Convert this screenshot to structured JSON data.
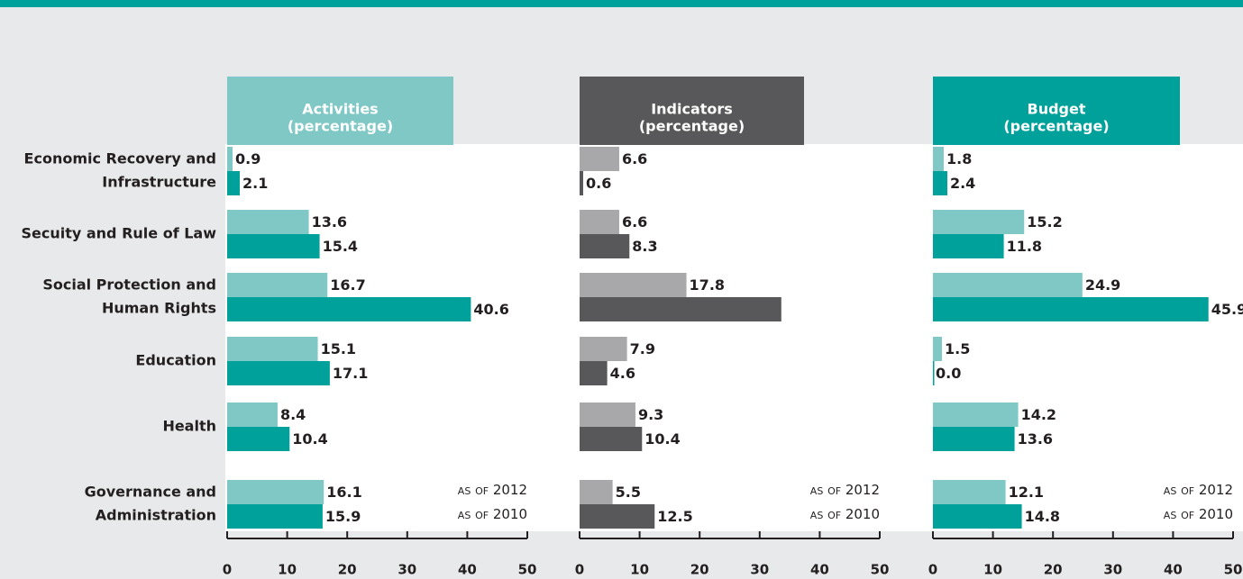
{
  "chart_data": [
    {
      "type": "bar",
      "orientation": "horizontal",
      "title": [
        "Activities",
        "(percentage)"
      ],
      "header_color": "#80c8c5",
      "categories": [
        [
          "Economic Recovery and",
          "Infrastructure"
        ],
        [
          "Secuity and Rule of Law"
        ],
        [
          "Social Protection and",
          "Human Rights"
        ],
        [
          "Education"
        ],
        [
          "Health"
        ],
        [
          "Governance and",
          "Administration"
        ]
      ],
      "series": [
        {
          "name": "as of 2012",
          "color": "#80c8c5",
          "values": [
            0.9,
            13.6,
            16.7,
            15.1,
            8.4,
            16.1
          ],
          "value_labels": [
            "0.9",
            "13.6",
            "16.7",
            "15.1",
            "8.4",
            "16.1"
          ]
        },
        {
          "name": "as of 2010",
          "color": "#00a19a",
          "values": [
            2.1,
            15.4,
            40.6,
            17.1,
            10.4,
            15.9
          ],
          "value_labels": [
            "2.1",
            "15.4",
            "40.6",
            "17.1",
            "10.4",
            "15.9"
          ]
        }
      ],
      "xlim": [
        0,
        50
      ],
      "xticks": [
        0,
        10,
        20,
        30,
        40,
        50
      ]
    },
    {
      "type": "bar",
      "orientation": "horizontal",
      "title": [
        "Indicators",
        "(percentage)"
      ],
      "header_color": "#58585a",
      "series": [
        {
          "name": "as of 2012",
          "color": "#a8a8aa",
          "values": [
            6.6,
            6.6,
            17.8,
            7.9,
            9.3,
            5.5
          ],
          "value_labels": [
            "6.6",
            "6.6",
            "17.8",
            "7.9",
            "9.3",
            "5.5"
          ]
        },
        {
          "name": "as of 2010",
          "color": "#58585a",
          "values": [
            0.6,
            8.3,
            33.6,
            4.6,
            10.4,
            12.5
          ],
          "value_labels": [
            "0.6",
            "8.3",
            null,
            "4.6",
            "10.4",
            "12.5"
          ]
        }
      ],
      "xlim": [
        0,
        50
      ],
      "xticks": [
        0,
        10,
        20,
        30,
        40,
        50
      ]
    },
    {
      "type": "bar",
      "orientation": "horizontal",
      "title": [
        "Budget",
        "(percentage)"
      ],
      "header_color": "#00a19a",
      "series": [
        {
          "name": "as of 2012",
          "color": "#80c8c5",
          "values": [
            1.8,
            15.2,
            24.9,
            1.5,
            14.2,
            12.1
          ],
          "value_labels": [
            "1.8",
            "15.2",
            "24.9",
            "1.5",
            "14.2",
            "12.1"
          ]
        },
        {
          "name": "as of 2010",
          "color": "#00a19a",
          "values": [
            2.4,
            11.8,
            45.9,
            0.0,
            13.6,
            14.8
          ],
          "value_labels": [
            "2.4",
            "11.8",
            "45.9",
            "0.0",
            "13.6",
            "14.8"
          ]
        }
      ],
      "xlim": [
        0,
        50
      ],
      "xticks": [
        0,
        10,
        20,
        30,
        40,
        50
      ]
    }
  ]
}
